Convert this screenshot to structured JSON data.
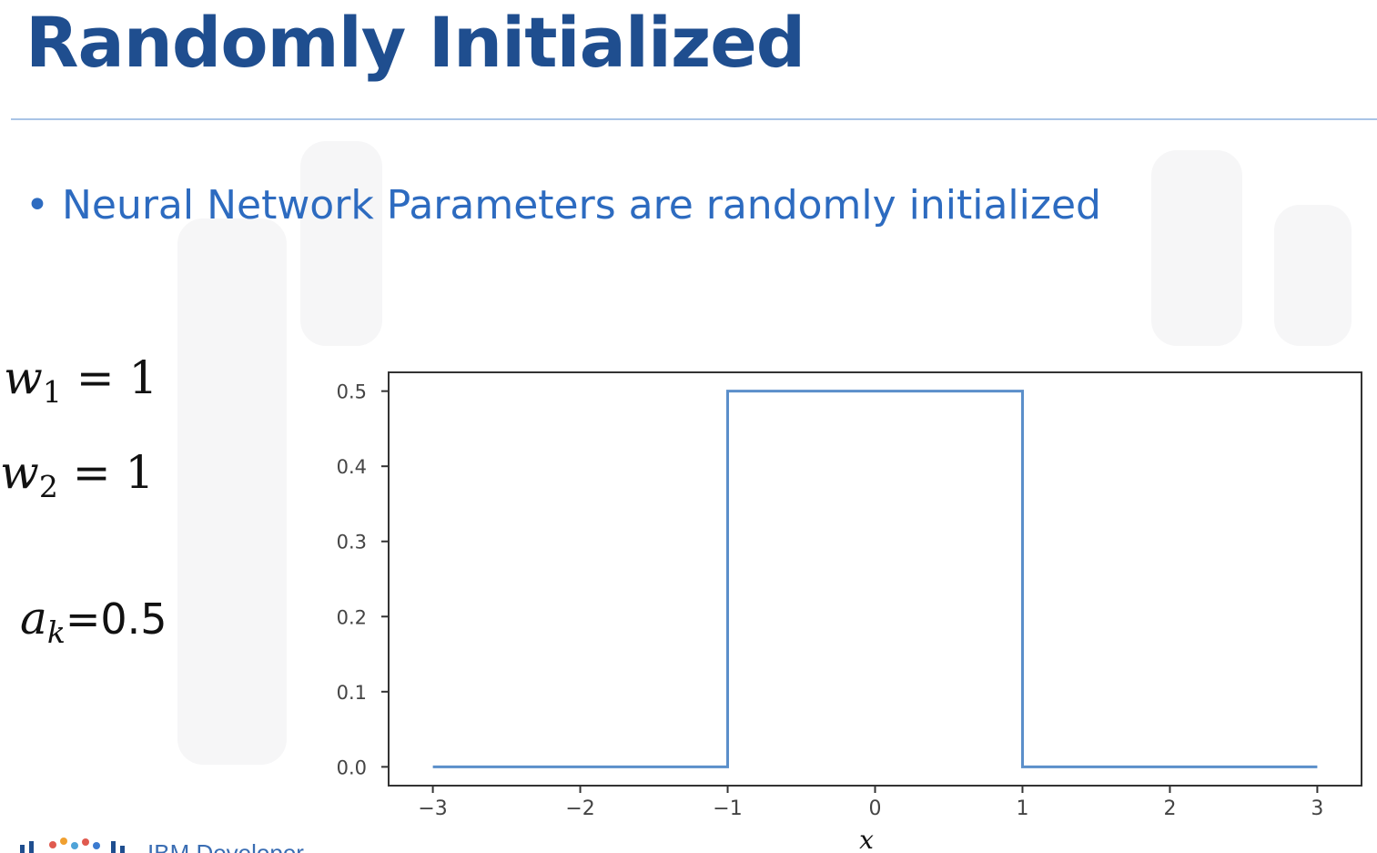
{
  "slide": {
    "title": "Randomly Initialized",
    "bullet": "Neural Network Parameters are randomly initialized",
    "bullet_marker": "•"
  },
  "equations": [
    {
      "var": "w",
      "sub": "1",
      "rest": " = 1"
    },
    {
      "var": "w",
      "sub": "2",
      "rest": " = 1"
    },
    {
      "var": "a",
      "sub": "k",
      "rest": "=0.5"
    }
  ],
  "footer": {
    "logo_text": "IBM Developer"
  },
  "colors": {
    "title": "#1f4e8f",
    "bullet": "#2d6bc0",
    "line": "#5b8fca",
    "rule": "#a9c4e6"
  },
  "chart_data": {
    "type": "line",
    "title": "",
    "xlabel": "x",
    "ylabel": "",
    "xlim": [
      -3.3,
      3.3
    ],
    "ylim": [
      -0.025,
      0.525
    ],
    "xticks": [
      -3,
      -2,
      -1,
      0,
      1,
      2,
      3
    ],
    "xtick_labels": [
      "−3",
      "−2",
      "−1",
      "0",
      "1",
      "2",
      "3"
    ],
    "yticks": [
      0.0,
      0.1,
      0.2,
      0.3,
      0.4,
      0.5
    ],
    "ytick_labels": [
      "0.0",
      "0.1",
      "0.2",
      "0.3",
      "0.4",
      "0.5"
    ],
    "grid": false,
    "series": [
      {
        "x": [
          -3,
          -1,
          -1,
          1,
          1,
          3
        ],
        "y": [
          0,
          0,
          0.5,
          0.5,
          0,
          0
        ]
      }
    ]
  }
}
